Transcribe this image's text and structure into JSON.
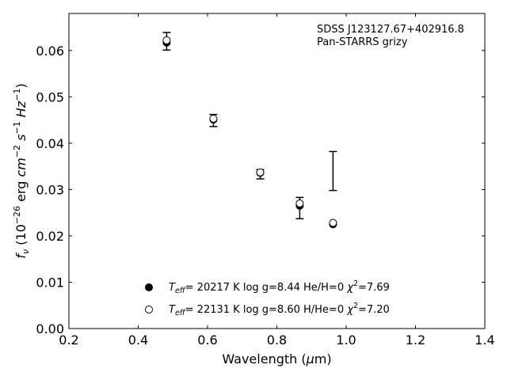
{
  "chart_data": {
    "type": "scatter",
    "annotation": [
      "SDSS J123127.67+402916.8",
      "Pan-STARRS grizy"
    ],
    "xlabel": "Wavelength (μm)",
    "ylabel": "fν (10⁻²⁶ erg cm⁻² s⁻¹ Hz⁻¹)",
    "xlim": [
      0.2,
      1.4
    ],
    "ylim": [
      0.0,
      0.068
    ],
    "x_ticks": [
      0.2,
      0.4,
      0.6,
      0.8,
      1.0,
      1.2,
      1.4
    ],
    "x_tick_labels": [
      "0.2",
      "0.4",
      "0.6",
      "0.8",
      "1.0",
      "1.2",
      "1.4"
    ],
    "y_ticks": [
      0.0,
      0.01,
      0.02,
      0.03,
      0.04,
      0.05,
      0.06
    ],
    "y_tick_labels": [
      "0.00",
      "0.01",
      "0.02",
      "0.03",
      "0.04",
      "0.05",
      "0.06"
    ],
    "observed": {
      "x": [
        0.482,
        0.617,
        0.752,
        0.866,
        0.962
      ],
      "y": [
        0.062,
        0.0449,
        0.0333,
        0.026,
        0.034
      ],
      "yerr": [
        0.0019,
        0.0013,
        0.001,
        0.0023,
        0.0042
      ]
    },
    "series": [
      {
        "label": "T_eff= 20217 K  log g=8.44  He/H=0  χ²=7.69",
        "marker": "filled",
        "x": [
          0.482,
          0.617,
          0.752,
          0.866,
          0.962
        ],
        "y": [
          0.0617,
          0.0451,
          0.0336,
          0.0265,
          0.0225
        ]
      },
      {
        "label": "T_eff= 22131 K  log g=8.60  H/He=0  χ²=7.20",
        "marker": "open",
        "x": [
          0.482,
          0.617,
          0.752,
          0.866,
          0.962
        ],
        "y": [
          0.0622,
          0.0453,
          0.0337,
          0.027,
          0.0228
        ]
      }
    ],
    "legend_position": "lower-center",
    "grid": false
  }
}
